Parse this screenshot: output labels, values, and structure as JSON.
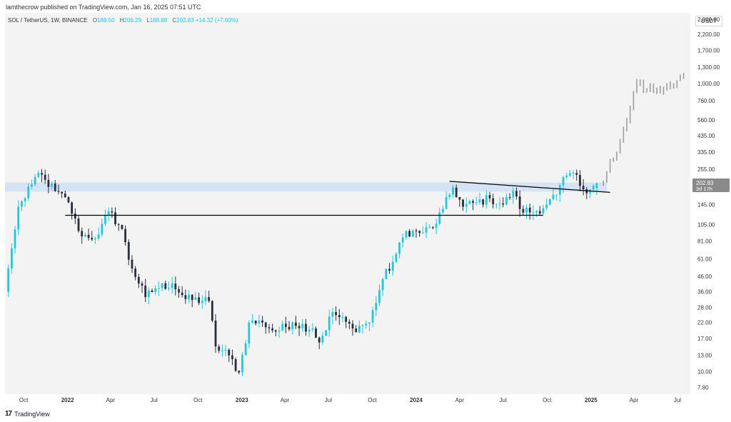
{
  "publish_line": "lamthecrow published on TradingView.com, Jan 16, 2025 07:51 UTC",
  "legend": {
    "symbol": "SOL / TetherUS, 1W, BINANCE",
    "open_label": "O",
    "open": "188.50",
    "high_label": "H",
    "high": "206.29",
    "low_label": "L",
    "low": "168.88",
    "close_label": "C",
    "close": "202.83",
    "change": "+14.32 (+7.60%)"
  },
  "price_axis": {
    "currency": "USDT",
    "current_price": "202.83",
    "countdown": "3d 17h"
  },
  "branding": {
    "name": "TradingView",
    "logo_glyph": "17"
  },
  "colors": {
    "up": "#26c6da",
    "down": "#2a2e39",
    "projection": "#9e9e9e",
    "zone": "#cfe0f3",
    "price_badge": "#8a8a8a"
  },
  "chart_data": {
    "type": "candlestick",
    "symbol": "SOL / TetherUS",
    "interval": "1W",
    "exchange": "BINANCE",
    "y_scale": "log",
    "ylim": [
      7,
      3100
    ],
    "xlim": [
      "2021-08-23",
      "2025-07-28"
    ],
    "grid": false,
    "y_ticks": [
      "2,800.00",
      "2,200.00",
      "1,700.00",
      "1,300.00",
      "1,000.00",
      "760.00",
      "560.00",
      "435.00",
      "335.00",
      "255.00",
      "145.00",
      "105.00",
      "81.00",
      "61.00",
      "46.00",
      "36.00",
      "28.00",
      "22.00",
      "17.00",
      "13.00",
      "10.00",
      "7.80"
    ],
    "x_ticks": [
      {
        "label": "Oct",
        "date": "2021-10-01",
        "bold": false
      },
      {
        "label": "2022",
        "date": "2022-01-01",
        "bold": true
      },
      {
        "label": "Apr",
        "date": "2022-04-01",
        "bold": false
      },
      {
        "label": "Jul",
        "date": "2022-07-01",
        "bold": false
      },
      {
        "label": "Oct",
        "date": "2022-10-01",
        "bold": false
      },
      {
        "label": "2023",
        "date": "2023-01-01",
        "bold": true
      },
      {
        "label": "Apr",
        "date": "2023-04-01",
        "bold": false
      },
      {
        "label": "Jul",
        "date": "2023-07-01",
        "bold": false
      },
      {
        "label": "Oct",
        "date": "2023-10-01",
        "bold": false
      },
      {
        "label": "2024",
        "date": "2024-01-01",
        "bold": true
      },
      {
        "label": "Apr",
        "date": "2024-04-01",
        "bold": false
      },
      {
        "label": "Jul",
        "date": "2024-07-01",
        "bold": false
      },
      {
        "label": "Oct",
        "date": "2024-10-01",
        "bold": false
      },
      {
        "label": "2025",
        "date": "2025-01-01",
        "bold": true
      },
      {
        "label": "Apr",
        "date": "2025-04-01",
        "bold": false
      },
      {
        "label": "Jul",
        "date": "2025-07-01",
        "bold": false
      }
    ],
    "close_anchors": [
      [
        "2021-08-23",
        36
      ],
      [
        "2021-09-06",
        72
      ],
      [
        "2021-09-20",
        140
      ],
      [
        "2021-10-04",
        160
      ],
      [
        "2021-10-18",
        200
      ],
      [
        "2021-11-01",
        240
      ],
      [
        "2021-11-15",
        215
      ],
      [
        "2021-12-06",
        180
      ],
      [
        "2022-01-03",
        150
      ],
      [
        "2022-01-24",
        95
      ],
      [
        "2022-02-14",
        85
      ],
      [
        "2022-03-07",
        90
      ],
      [
        "2022-03-28",
        130
      ],
      [
        "2022-04-25",
        98
      ],
      [
        "2022-05-09",
        60
      ],
      [
        "2022-06-13",
        33
      ],
      [
        "2022-07-04",
        38
      ],
      [
        "2022-08-08",
        41
      ],
      [
        "2022-09-05",
        32
      ],
      [
        "2022-10-24",
        31
      ],
      [
        "2022-11-07",
        15
      ],
      [
        "2022-12-05",
        13
      ],
      [
        "2022-12-26",
        9.9
      ],
      [
        "2023-01-16",
        22
      ],
      [
        "2023-02-13",
        22
      ],
      [
        "2023-03-13",
        19
      ],
      [
        "2023-04-17",
        22
      ],
      [
        "2023-05-29",
        20
      ],
      [
        "2023-06-12",
        16
      ],
      [
        "2023-07-10",
        26
      ],
      [
        "2023-08-21",
        20
      ],
      [
        "2023-09-25",
        22
      ],
      [
        "2023-10-23",
        44
      ],
      [
        "2023-11-13",
        58
      ],
      [
        "2023-12-11",
        95
      ],
      [
        "2024-01-08",
        92
      ],
      [
        "2024-02-05",
        100
      ],
      [
        "2024-02-26",
        135
      ],
      [
        "2024-03-18",
        190
      ],
      [
        "2024-04-08",
        140
      ],
      [
        "2024-05-06",
        150
      ],
      [
        "2024-06-03",
        160
      ],
      [
        "2024-07-01",
        145
      ],
      [
        "2024-07-22",
        180
      ],
      [
        "2024-08-05",
        135
      ],
      [
        "2024-09-02",
        128
      ],
      [
        "2024-09-30",
        145
      ],
      [
        "2024-10-21",
        170
      ],
      [
        "2024-11-11",
        230
      ],
      [
        "2024-11-25",
        240
      ],
      [
        "2024-12-16",
        185
      ],
      [
        "2025-01-06",
        195
      ],
      [
        "2025-01-13",
        202.83
      ]
    ],
    "last_candle": {
      "date": "2025-01-13",
      "open": 188.5,
      "high": 206.29,
      "low": 168.88,
      "close": 202.83
    },
    "projection_anchors": [
      [
        "2025-01-20",
        205
      ],
      [
        "2025-02-03",
        240
      ],
      [
        "2025-02-24",
        330
      ],
      [
        "2025-03-17",
        560
      ],
      [
        "2025-04-07",
        1050
      ],
      [
        "2025-04-28",
        900
      ],
      [
        "2025-05-19",
        920
      ],
      [
        "2025-06-16",
        1000
      ],
      [
        "2025-07-14",
        1150
      ]
    ],
    "annotations": {
      "horizontal_zone": {
        "from": 178,
        "to": 206,
        "start": "2021-08-23",
        "end": "2025-02-03"
      },
      "support_line": {
        "price": 122,
        "start": "2021-12-27",
        "end": "2024-09-23"
      },
      "descending_trendline": {
        "start": [
          "2024-03-11",
          210
        ],
        "end": "2025-02-10",
        "end_price": 176
      }
    }
  }
}
